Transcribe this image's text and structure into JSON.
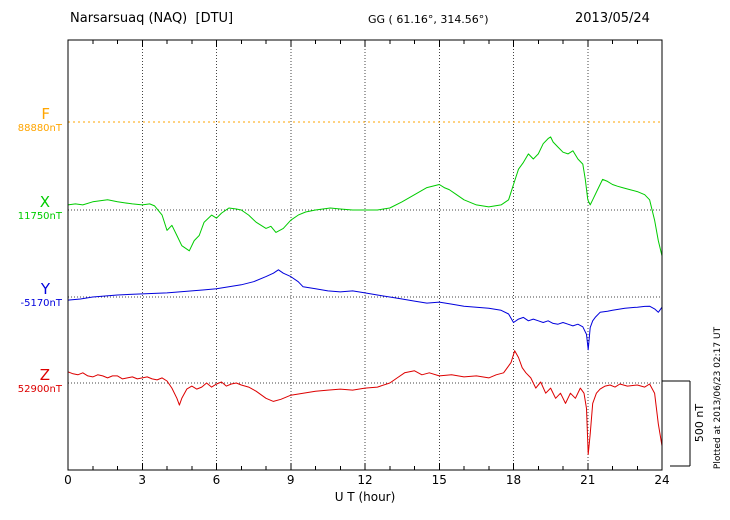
{
  "header": {
    "station": "Narsarsuaq (NAQ)  [DTU]",
    "gg": "GG ( 61.16°, 314.56°)",
    "date": "2013/05/24"
  },
  "xaxis": {
    "label": "U T (hour)",
    "ticks": [
      "0",
      "3",
      "6",
      "9",
      "12",
      "15",
      "18",
      "21",
      "24"
    ],
    "min": 0,
    "max": 24
  },
  "scale_bar": {
    "label": "500 nT",
    "nT": 500
  },
  "plotted_at": "Plotted at 2013/06/23 02:17 UT",
  "chart_data": {
    "type": "line",
    "title": "Narsarsuaq (NAQ) [DTU] magnetogram — 2013/05/24",
    "xlabel": "U T (hour)",
    "x_range": [
      0,
      24
    ],
    "x_unit": "hour",
    "y_unit": "nT",
    "scale_division_nT": 500,
    "grid": "dotted vertical lines every 3 hours; dotted horizontal baseline per component",
    "points_format": "[UT hour, offset in nT from component baseline]",
    "series": [
      {
        "name": "F",
        "color": "#ffa500",
        "baseline_label": "88880nT",
        "baseline_nT": 88880,
        "line_style": "dotted",
        "points": [
          [
            0,
            0
          ],
          [
            6,
            0
          ],
          [
            12,
            0
          ],
          [
            18,
            0
          ],
          [
            24,
            0
          ]
        ]
      },
      {
        "name": "X",
        "color": "#00cc00",
        "baseline_label": "11750nT",
        "baseline_nT": 11750,
        "line_style": "solid",
        "points": [
          [
            0,
            30
          ],
          [
            0.3,
            36
          ],
          [
            0.6,
            30
          ],
          [
            1,
            48
          ],
          [
            1.3,
            54
          ],
          [
            1.6,
            60
          ],
          [
            2,
            48
          ],
          [
            2.3,
            42
          ],
          [
            2.6,
            36
          ],
          [
            3,
            30
          ],
          [
            3.3,
            36
          ],
          [
            3.5,
            24
          ],
          [
            3.8,
            -30
          ],
          [
            4,
            -120
          ],
          [
            4.2,
            -90
          ],
          [
            4.4,
            -150
          ],
          [
            4.6,
            -210
          ],
          [
            4.9,
            -240
          ],
          [
            5.1,
            -180
          ],
          [
            5.3,
            -150
          ],
          [
            5.5,
            -72
          ],
          [
            5.8,
            -30
          ],
          [
            6,
            -48
          ],
          [
            6.2,
            -18
          ],
          [
            6.5,
            12
          ],
          [
            6.8,
            6
          ],
          [
            7,
            0
          ],
          [
            7.3,
            -30
          ],
          [
            7.6,
            -72
          ],
          [
            8,
            -108
          ],
          [
            8.2,
            -96
          ],
          [
            8.4,
            -132
          ],
          [
            8.7,
            -108
          ],
          [
            9,
            -60
          ],
          [
            9.3,
            -30
          ],
          [
            9.6,
            -12
          ],
          [
            10,
            0
          ],
          [
            10.3,
            6
          ],
          [
            10.6,
            12
          ],
          [
            11,
            6
          ],
          [
            11.5,
            0
          ],
          [
            12,
            0
          ],
          [
            12.5,
            0
          ],
          [
            13,
            12
          ],
          [
            13.5,
            48
          ],
          [
            14,
            90
          ],
          [
            14.5,
            132
          ],
          [
            15,
            150
          ],
          [
            15.2,
            132
          ],
          [
            15.4,
            120
          ],
          [
            15.7,
            90
          ],
          [
            16,
            60
          ],
          [
            16.5,
            30
          ],
          [
            17,
            18
          ],
          [
            17.5,
            30
          ],
          [
            17.8,
            60
          ],
          [
            18,
            150
          ],
          [
            18.2,
            240
          ],
          [
            18.4,
            280
          ],
          [
            18.6,
            330
          ],
          [
            18.8,
            300
          ],
          [
            19,
            330
          ],
          [
            19.2,
            390
          ],
          [
            19.4,
            420
          ],
          [
            19.5,
            430
          ],
          [
            19.6,
            400
          ],
          [
            19.8,
            370
          ],
          [
            20,
            340
          ],
          [
            20.2,
            330
          ],
          [
            20.4,
            348
          ],
          [
            20.6,
            300
          ],
          [
            20.8,
            270
          ],
          [
            20.9,
            180
          ],
          [
            21,
            60
          ],
          [
            21.1,
            30
          ],
          [
            21.2,
            60
          ],
          [
            21.4,
            120
          ],
          [
            21.6,
            180
          ],
          [
            21.8,
            168
          ],
          [
            22,
            150
          ],
          [
            22.2,
            140
          ],
          [
            22.4,
            132
          ],
          [
            22.7,
            120
          ],
          [
            23,
            108
          ],
          [
            23.3,
            90
          ],
          [
            23.5,
            60
          ],
          [
            23.7,
            -60
          ],
          [
            23.85,
            -180
          ],
          [
            24,
            -270
          ]
        ]
      },
      {
        "name": "Y",
        "color": "#0000dd",
        "baseline_label": "-5170nT",
        "baseline_nT": -5170,
        "line_style": "solid",
        "points": [
          [
            0,
            -18
          ],
          [
            0.5,
            -12
          ],
          [
            1,
            0
          ],
          [
            1.5,
            6
          ],
          [
            2,
            12
          ],
          [
            2.5,
            15
          ],
          [
            3,
            18
          ],
          [
            3.5,
            21
          ],
          [
            4,
            24
          ],
          [
            4.5,
            30
          ],
          [
            5,
            36
          ],
          [
            5.5,
            42
          ],
          [
            6,
            48
          ],
          [
            6.5,
            60
          ],
          [
            7,
            72
          ],
          [
            7.5,
            90
          ],
          [
            8,
            120
          ],
          [
            8.3,
            140
          ],
          [
            8.5,
            160
          ],
          [
            8.7,
            140
          ],
          [
            9,
            120
          ],
          [
            9.3,
            90
          ],
          [
            9.5,
            60
          ],
          [
            10,
            48
          ],
          [
            10.5,
            36
          ],
          [
            11,
            30
          ],
          [
            11.5,
            36
          ],
          [
            12,
            24
          ],
          [
            12.5,
            12
          ],
          [
            13,
            0
          ],
          [
            13.5,
            -12
          ],
          [
            14,
            -24
          ],
          [
            14.5,
            -36
          ],
          [
            15,
            -30
          ],
          [
            15.5,
            -42
          ],
          [
            16,
            -54
          ],
          [
            16.5,
            -60
          ],
          [
            17,
            -66
          ],
          [
            17.5,
            -78
          ],
          [
            17.8,
            -100
          ],
          [
            18,
            -150
          ],
          [
            18.2,
            -130
          ],
          [
            18.4,
            -120
          ],
          [
            18.6,
            -140
          ],
          [
            18.8,
            -130
          ],
          [
            19,
            -140
          ],
          [
            19.2,
            -150
          ],
          [
            19.4,
            -140
          ],
          [
            19.6,
            -155
          ],
          [
            19.8,
            -160
          ],
          [
            20,
            -150
          ],
          [
            20.2,
            -160
          ],
          [
            20.4,
            -170
          ],
          [
            20.6,
            -160
          ],
          [
            20.8,
            -175
          ],
          [
            20.95,
            -220
          ],
          [
            21.02,
            -310
          ],
          [
            21.1,
            -180
          ],
          [
            21.2,
            -140
          ],
          [
            21.3,
            -120
          ],
          [
            21.5,
            -90
          ],
          [
            21.8,
            -84
          ],
          [
            22,
            -78
          ],
          [
            22.5,
            -66
          ],
          [
            23,
            -60
          ],
          [
            23.3,
            -55
          ],
          [
            23.5,
            -54
          ],
          [
            23.7,
            -70
          ],
          [
            23.85,
            -90
          ],
          [
            24,
            -60
          ]
        ]
      },
      {
        "name": "Z",
        "color": "#dd0000",
        "baseline_label": "52900nT",
        "baseline_nT": 52900,
        "line_style": "solid",
        "points": [
          [
            0,
            66
          ],
          [
            0.2,
            54
          ],
          [
            0.4,
            48
          ],
          [
            0.6,
            60
          ],
          [
            0.8,
            42
          ],
          [
            1,
            36
          ],
          [
            1.2,
            48
          ],
          [
            1.4,
            42
          ],
          [
            1.6,
            30
          ],
          [
            1.8,
            42
          ],
          [
            2,
            42
          ],
          [
            2.2,
            24
          ],
          [
            2.4,
            30
          ],
          [
            2.6,
            36
          ],
          [
            2.8,
            24
          ],
          [
            3,
            30
          ],
          [
            3.2,
            36
          ],
          [
            3.4,
            24
          ],
          [
            3.6,
            18
          ],
          [
            3.8,
            30
          ],
          [
            4,
            12
          ],
          [
            4.2,
            -30
          ],
          [
            4.4,
            -90
          ],
          [
            4.5,
            -130
          ],
          [
            4.6,
            -90
          ],
          [
            4.8,
            -36
          ],
          [
            5,
            -18
          ],
          [
            5.2,
            -36
          ],
          [
            5.4,
            -24
          ],
          [
            5.6,
            0
          ],
          [
            5.8,
            -24
          ],
          [
            6,
            -6
          ],
          [
            6.2,
            6
          ],
          [
            6.4,
            -18
          ],
          [
            6.6,
            -6
          ],
          [
            6.8,
            0
          ],
          [
            7,
            -12
          ],
          [
            7.3,
            -24
          ],
          [
            7.6,
            -48
          ],
          [
            8,
            -90
          ],
          [
            8.3,
            -108
          ],
          [
            8.6,
            -96
          ],
          [
            9,
            -72
          ],
          [
            9.5,
            -60
          ],
          [
            10,
            -48
          ],
          [
            10.5,
            -42
          ],
          [
            11,
            -36
          ],
          [
            11.5,
            -42
          ],
          [
            12,
            -30
          ],
          [
            12.5,
            -24
          ],
          [
            13,
            0
          ],
          [
            13.3,
            30
          ],
          [
            13.6,
            60
          ],
          [
            14,
            72
          ],
          [
            14.3,
            48
          ],
          [
            14.6,
            60
          ],
          [
            15,
            42
          ],
          [
            15.5,
            48
          ],
          [
            16,
            36
          ],
          [
            16.5,
            42
          ],
          [
            17,
            30
          ],
          [
            17.3,
            48
          ],
          [
            17.6,
            60
          ],
          [
            17.9,
            120
          ],
          [
            18.05,
            190
          ],
          [
            18.2,
            150
          ],
          [
            18.35,
            90
          ],
          [
            18.5,
            60
          ],
          [
            18.7,
            30
          ],
          [
            18.9,
            -30
          ],
          [
            19.1,
            6
          ],
          [
            19.3,
            -60
          ],
          [
            19.5,
            -30
          ],
          [
            19.7,
            -90
          ],
          [
            19.9,
            -60
          ],
          [
            20.1,
            -120
          ],
          [
            20.3,
            -60
          ],
          [
            20.5,
            -90
          ],
          [
            20.7,
            -30
          ],
          [
            20.85,
            -60
          ],
          [
            20.95,
            -150
          ],
          [
            21.02,
            -420
          ],
          [
            21.1,
            -300
          ],
          [
            21.2,
            -120
          ],
          [
            21.35,
            -60
          ],
          [
            21.5,
            -36
          ],
          [
            21.7,
            -18
          ],
          [
            21.9,
            -12
          ],
          [
            22.1,
            -24
          ],
          [
            22.3,
            -6
          ],
          [
            22.6,
            -18
          ],
          [
            23,
            -12
          ],
          [
            23.3,
            -24
          ],
          [
            23.5,
            -6
          ],
          [
            23.7,
            -60
          ],
          [
            23.85,
            -240
          ],
          [
            24,
            -370
          ]
        ]
      }
    ]
  }
}
